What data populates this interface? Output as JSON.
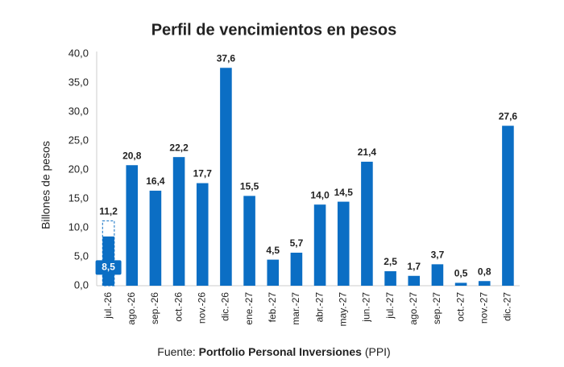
{
  "chart_data": {
    "type": "bar",
    "title": "Perfil de vencimientos en pesos",
    "ylabel": "Billones de pesos",
    "categories": [
      "jul.-26",
      "ago.-26",
      "sep.-26",
      "oct.-26",
      "nov.-26",
      "dic.-26",
      "ene.-27",
      "feb.-27",
      "mar.-27",
      "abr.-27",
      "may.-27",
      "jun.-27",
      "jul.-27",
      "ago.-27",
      "sep.-27",
      "oct.-27",
      "nov.-27",
      "dic.-27"
    ],
    "values": [
      11.2,
      20.8,
      16.4,
      22.2,
      17.7,
      37.6,
      15.5,
      4.5,
      5.7,
      14.0,
      14.5,
      21.4,
      2.5,
      1.7,
      3.7,
      0.5,
      0.8,
      27.6
    ],
    "value_labels": [
      "11,2",
      "20,8",
      "16,4",
      "22,2",
      "17,7",
      "37,6",
      "15,5",
      "4,5",
      "5,7",
      "14,0",
      "14,5",
      "21,4",
      "2,5",
      "1,7",
      "3,7",
      "0,5",
      "0,8",
      "27,6"
    ],
    "highlight": {
      "category": "jul.-26",
      "value": 8.5,
      "label": "8,5"
    },
    "color": "#0b6ec4",
    "ylim": [
      0,
      40
    ],
    "yticks": [
      {
        "value": 0,
        "label": "0,0"
      },
      {
        "value": 5,
        "label": "5,0"
      },
      {
        "value": 10,
        "label": "10,0"
      },
      {
        "value": 15,
        "label": "15,0"
      },
      {
        "value": 20,
        "label": "20,0"
      },
      {
        "value": 25,
        "label": "25,0"
      },
      {
        "value": 30,
        "label": "30,0"
      },
      {
        "value": 35,
        "label": "35,0"
      },
      {
        "value": 40,
        "label": "40,0"
      }
    ],
    "grid": false,
    "source": {
      "prefix": "Fuente:",
      "name": "Portfolio Personal Inversiones",
      "suffix": "(PPI)"
    }
  }
}
